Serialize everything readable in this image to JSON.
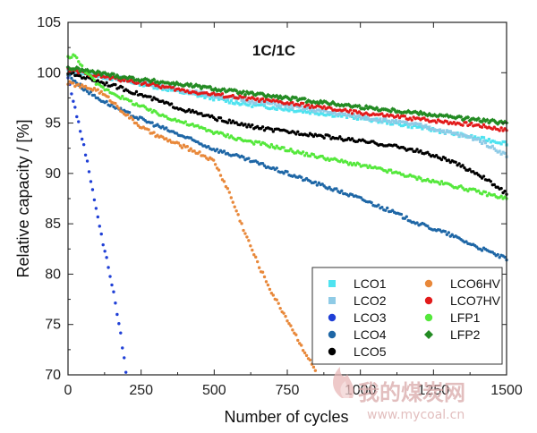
{
  "chart_data": {
    "type": "scatter",
    "title": "1C/1C",
    "xlabel": "Number of cycles",
    "ylabel": "Relative capacity / [%]",
    "xlim": [
      0,
      1500
    ],
    "ylim": [
      70,
      105
    ],
    "xticks": [
      0,
      250,
      500,
      750,
      1000,
      1250,
      1500
    ],
    "yticks": [
      70,
      75,
      80,
      85,
      90,
      95,
      100,
      105
    ],
    "legend_position": "bottom-right",
    "legend_columns": 2,
    "series": [
      {
        "name": "LCO1",
        "color": "#4fe3f0",
        "marker": "square",
        "x": [
          0,
          100,
          250,
          400,
          600,
          800,
          1000,
          1200,
          1400,
          1500
        ],
        "y": [
          100.2,
          99.7,
          98.9,
          98.0,
          96.9,
          96.2,
          95.5,
          94.6,
          93.5,
          93.0
        ]
      },
      {
        "name": "LCO2",
        "color": "#8fcbe6",
        "marker": "square",
        "x": [
          0,
          100,
          250,
          400,
          600,
          800,
          1000,
          1200,
          1400,
          1500
        ],
        "y": [
          100.3,
          99.8,
          99.1,
          98.2,
          97.3,
          96.5,
          95.6,
          94.8,
          93.4,
          91.8
        ]
      },
      {
        "name": "LCO3",
        "color": "#1f3fd6",
        "marker": "circle",
        "x": [
          0,
          20,
          40,
          60,
          80,
          100,
          120,
          140,
          160,
          180,
          200
        ],
        "y": [
          99.5,
          97.0,
          94.5,
          92.0,
          89.0,
          86.0,
          83.0,
          80.5,
          77.5,
          74.0,
          70.0
        ]
      },
      {
        "name": "LCO4",
        "color": "#1f67a6",
        "marker": "circle",
        "x": [
          0,
          50,
          100,
          200,
          300,
          400,
          500,
          600,
          700,
          800,
          900,
          1000,
          1100,
          1200,
          1300,
          1400,
          1500
        ],
        "y": [
          99.8,
          98.5,
          97.5,
          96.0,
          94.8,
          93.6,
          92.4,
          91.5,
          90.5,
          89.5,
          88.5,
          87.5,
          86.3,
          85.0,
          84.0,
          82.7,
          81.5
        ]
      },
      {
        "name": "LCO5",
        "color": "#000000",
        "marker": "circle",
        "x": [
          0,
          100,
          200,
          300,
          400,
          500,
          600,
          700,
          800,
          900,
          1000,
          1100,
          1200,
          1300,
          1400,
          1450,
          1500
        ],
        "y": [
          100.0,
          99.2,
          98.3,
          97.3,
          96.3,
          95.5,
          94.8,
          94.3,
          94.0,
          93.6,
          93.2,
          92.8,
          92.2,
          91.3,
          90.0,
          89.0,
          88.0
        ]
      },
      {
        "name": "LCO6HV",
        "color": "#e8883a",
        "marker": "circle",
        "x": [
          0,
          50,
          100,
          150,
          200,
          250,
          300,
          350,
          400,
          450,
          500,
          550,
          600,
          650,
          700,
          750,
          800,
          850
        ],
        "y": [
          99.0,
          98.6,
          98.3,
          97.2,
          95.8,
          94.6,
          93.8,
          93.2,
          92.6,
          92.0,
          91.2,
          88.2,
          84.5,
          81.0,
          78.0,
          75.5,
          72.8,
          70.2
        ]
      },
      {
        "name": "LCO7HV",
        "color": "#e21b1b",
        "marker": "circle",
        "x": [
          0,
          100,
          250,
          400,
          600,
          800,
          1000,
          1200,
          1400,
          1500
        ],
        "y": [
          100.3,
          99.7,
          99.0,
          98.2,
          97.5,
          96.8,
          96.0,
          95.4,
          94.8,
          94.3
        ]
      },
      {
        "name": "LFP1",
        "color": "#55e83c",
        "marker": "circle",
        "x": [
          0,
          20,
          50,
          100,
          200,
          300,
          400,
          500,
          600,
          700,
          800,
          900,
          1000,
          1100,
          1200,
          1300,
          1400,
          1500
        ],
        "y": [
          101.5,
          101.8,
          100.5,
          98.8,
          97.3,
          96.0,
          95.0,
          94.1,
          93.3,
          92.7,
          92.0,
          91.4,
          90.8,
          90.2,
          89.5,
          88.9,
          88.2,
          87.5
        ]
      },
      {
        "name": "LFP2",
        "color": "#238b23",
        "marker": "diamond",
        "x": [
          0,
          100,
          250,
          400,
          600,
          800,
          1000,
          1200,
          1400,
          1500
        ],
        "y": [
          100.5,
          100.0,
          99.3,
          98.8,
          98.0,
          97.3,
          96.6,
          96.0,
          95.3,
          95.0
        ]
      }
    ]
  },
  "watermark": {
    "text": "我的煤炭网",
    "url": "www.mycoal.cn"
  }
}
